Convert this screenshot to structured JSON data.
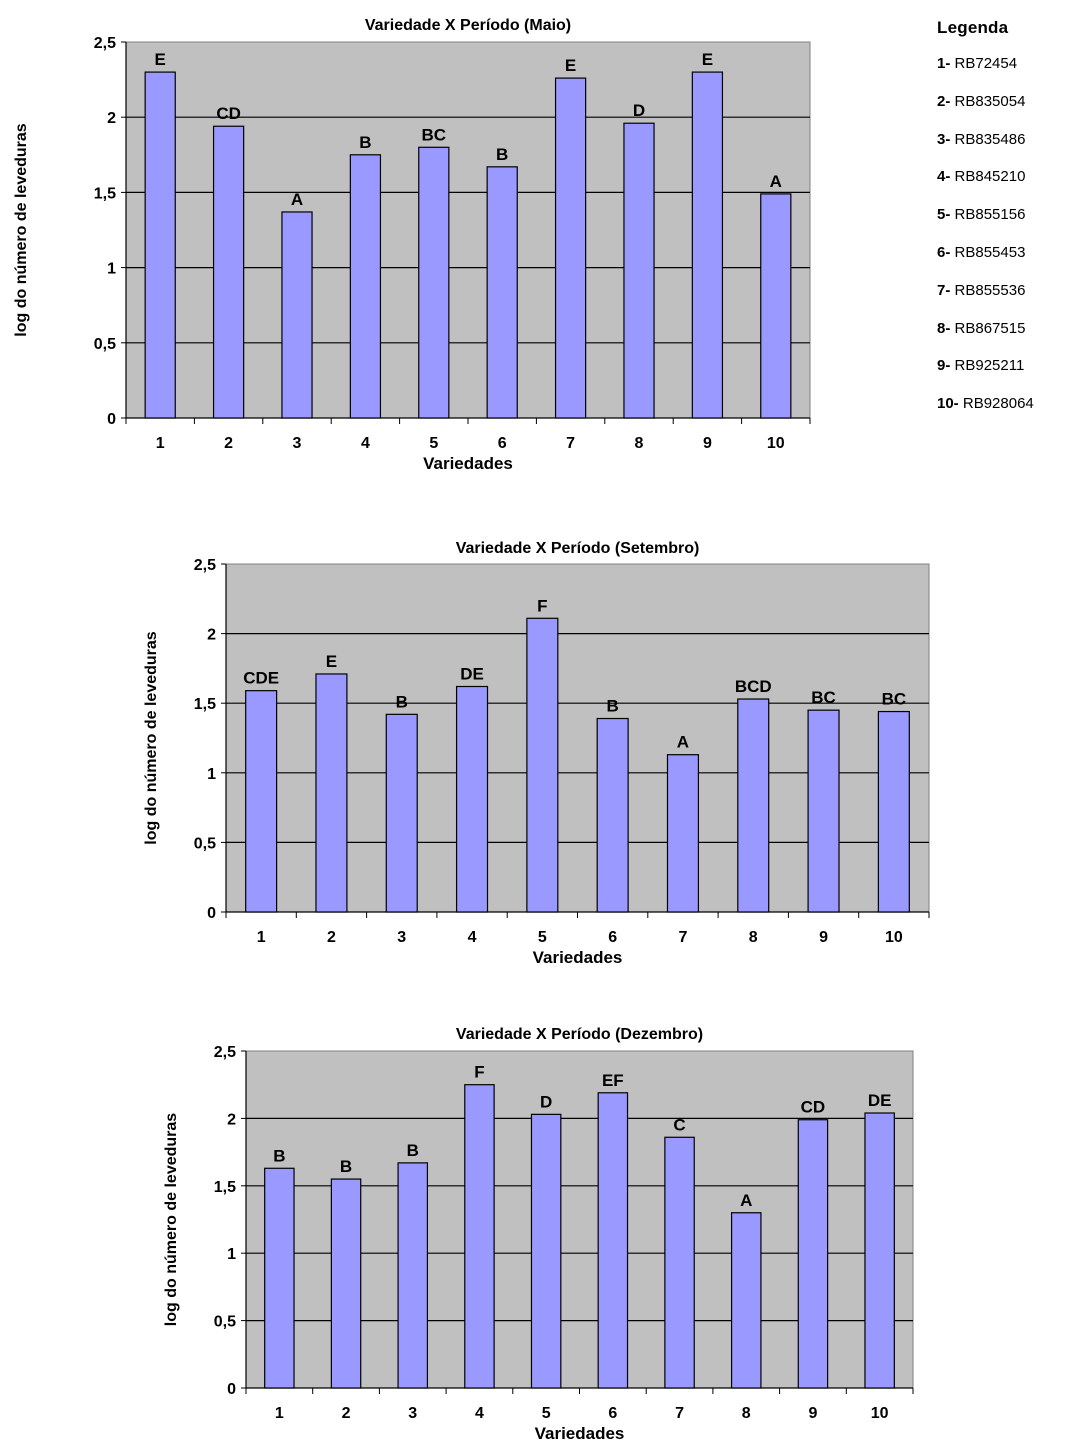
{
  "legend": {
    "title": "Legenda",
    "items": [
      {
        "num": "1-",
        "name": "RB72454"
      },
      {
        "num": "2-",
        "name": "RB835054"
      },
      {
        "num": "3-",
        "name": "RB835486"
      },
      {
        "num": "4-",
        "name": "RB845210"
      },
      {
        "num": "5-",
        "name": "RB855156"
      },
      {
        "num": "6-",
        "name": "RB855453"
      },
      {
        "num": "7-",
        "name": "RB855536"
      },
      {
        "num": "8-",
        "name": "RB867515"
      },
      {
        "num": "9-",
        "name": "RB925211"
      },
      {
        "num": "10-",
        "name": "RB928064"
      }
    ]
  },
  "colors": {
    "plot_bg": "#c0c0c0",
    "bar_fill": "#9999ff",
    "bar_stroke": "#000000",
    "gridline": "#000000"
  },
  "chart_data": [
    {
      "type": "bar",
      "title": "Variedade X Período (Maio)",
      "xlabel": "Variedades",
      "ylabel": "log do número de leveduras",
      "categories": [
        "1",
        "2",
        "3",
        "4",
        "5",
        "6",
        "7",
        "8",
        "9",
        "10"
      ],
      "values": [
        2.3,
        1.94,
        1.37,
        1.75,
        1.8,
        1.67,
        2.26,
        1.96,
        2.3,
        1.49
      ],
      "data_labels": [
        "E",
        "CD",
        "A",
        "B",
        "BC",
        "B",
        "E",
        "D",
        "E",
        "A"
      ],
      "ylim": [
        0,
        2.5
      ],
      "yticks": [
        "0",
        "0,5",
        "1",
        "1,5",
        "2",
        "2,5"
      ],
      "grid": true
    },
    {
      "type": "bar",
      "title": "Variedade X Período (Setembro)",
      "xlabel": "Variedades",
      "ylabel": "log do número de leveduras",
      "categories": [
        "1",
        "2",
        "3",
        "4",
        "5",
        "6",
        "7",
        "8",
        "9",
        "10"
      ],
      "values": [
        1.59,
        1.71,
        1.42,
        1.62,
        2.11,
        1.39,
        1.13,
        1.53,
        1.45,
        1.44
      ],
      "data_labels": [
        "CDE",
        "E",
        "B",
        "DE",
        "F",
        "B",
        "A",
        "BCD",
        "BC",
        "BC"
      ],
      "ylim": [
        0,
        2.5
      ],
      "yticks": [
        "0",
        "0,5",
        "1",
        "1,5",
        "2",
        "2,5"
      ],
      "grid": true
    },
    {
      "type": "bar",
      "title": "Variedade X Período (Dezembro)",
      "xlabel": "Variedades",
      "ylabel": "log do número de leveduras",
      "categories": [
        "1",
        "2",
        "3",
        "4",
        "5",
        "6",
        "7",
        "8",
        "9",
        "10"
      ],
      "values": [
        1.63,
        1.55,
        1.67,
        2.25,
        2.03,
        2.19,
        1.86,
        1.3,
        1.99,
        2.04
      ],
      "data_labels": [
        "B",
        "B",
        "B",
        "F",
        "D",
        "EF",
        "C",
        "A",
        "CD",
        "DE"
      ],
      "ylim": [
        0,
        2.5
      ],
      "yticks": [
        "0",
        "0,5",
        "1",
        "1,5",
        "2",
        "2,5"
      ],
      "grid": true
    }
  ]
}
